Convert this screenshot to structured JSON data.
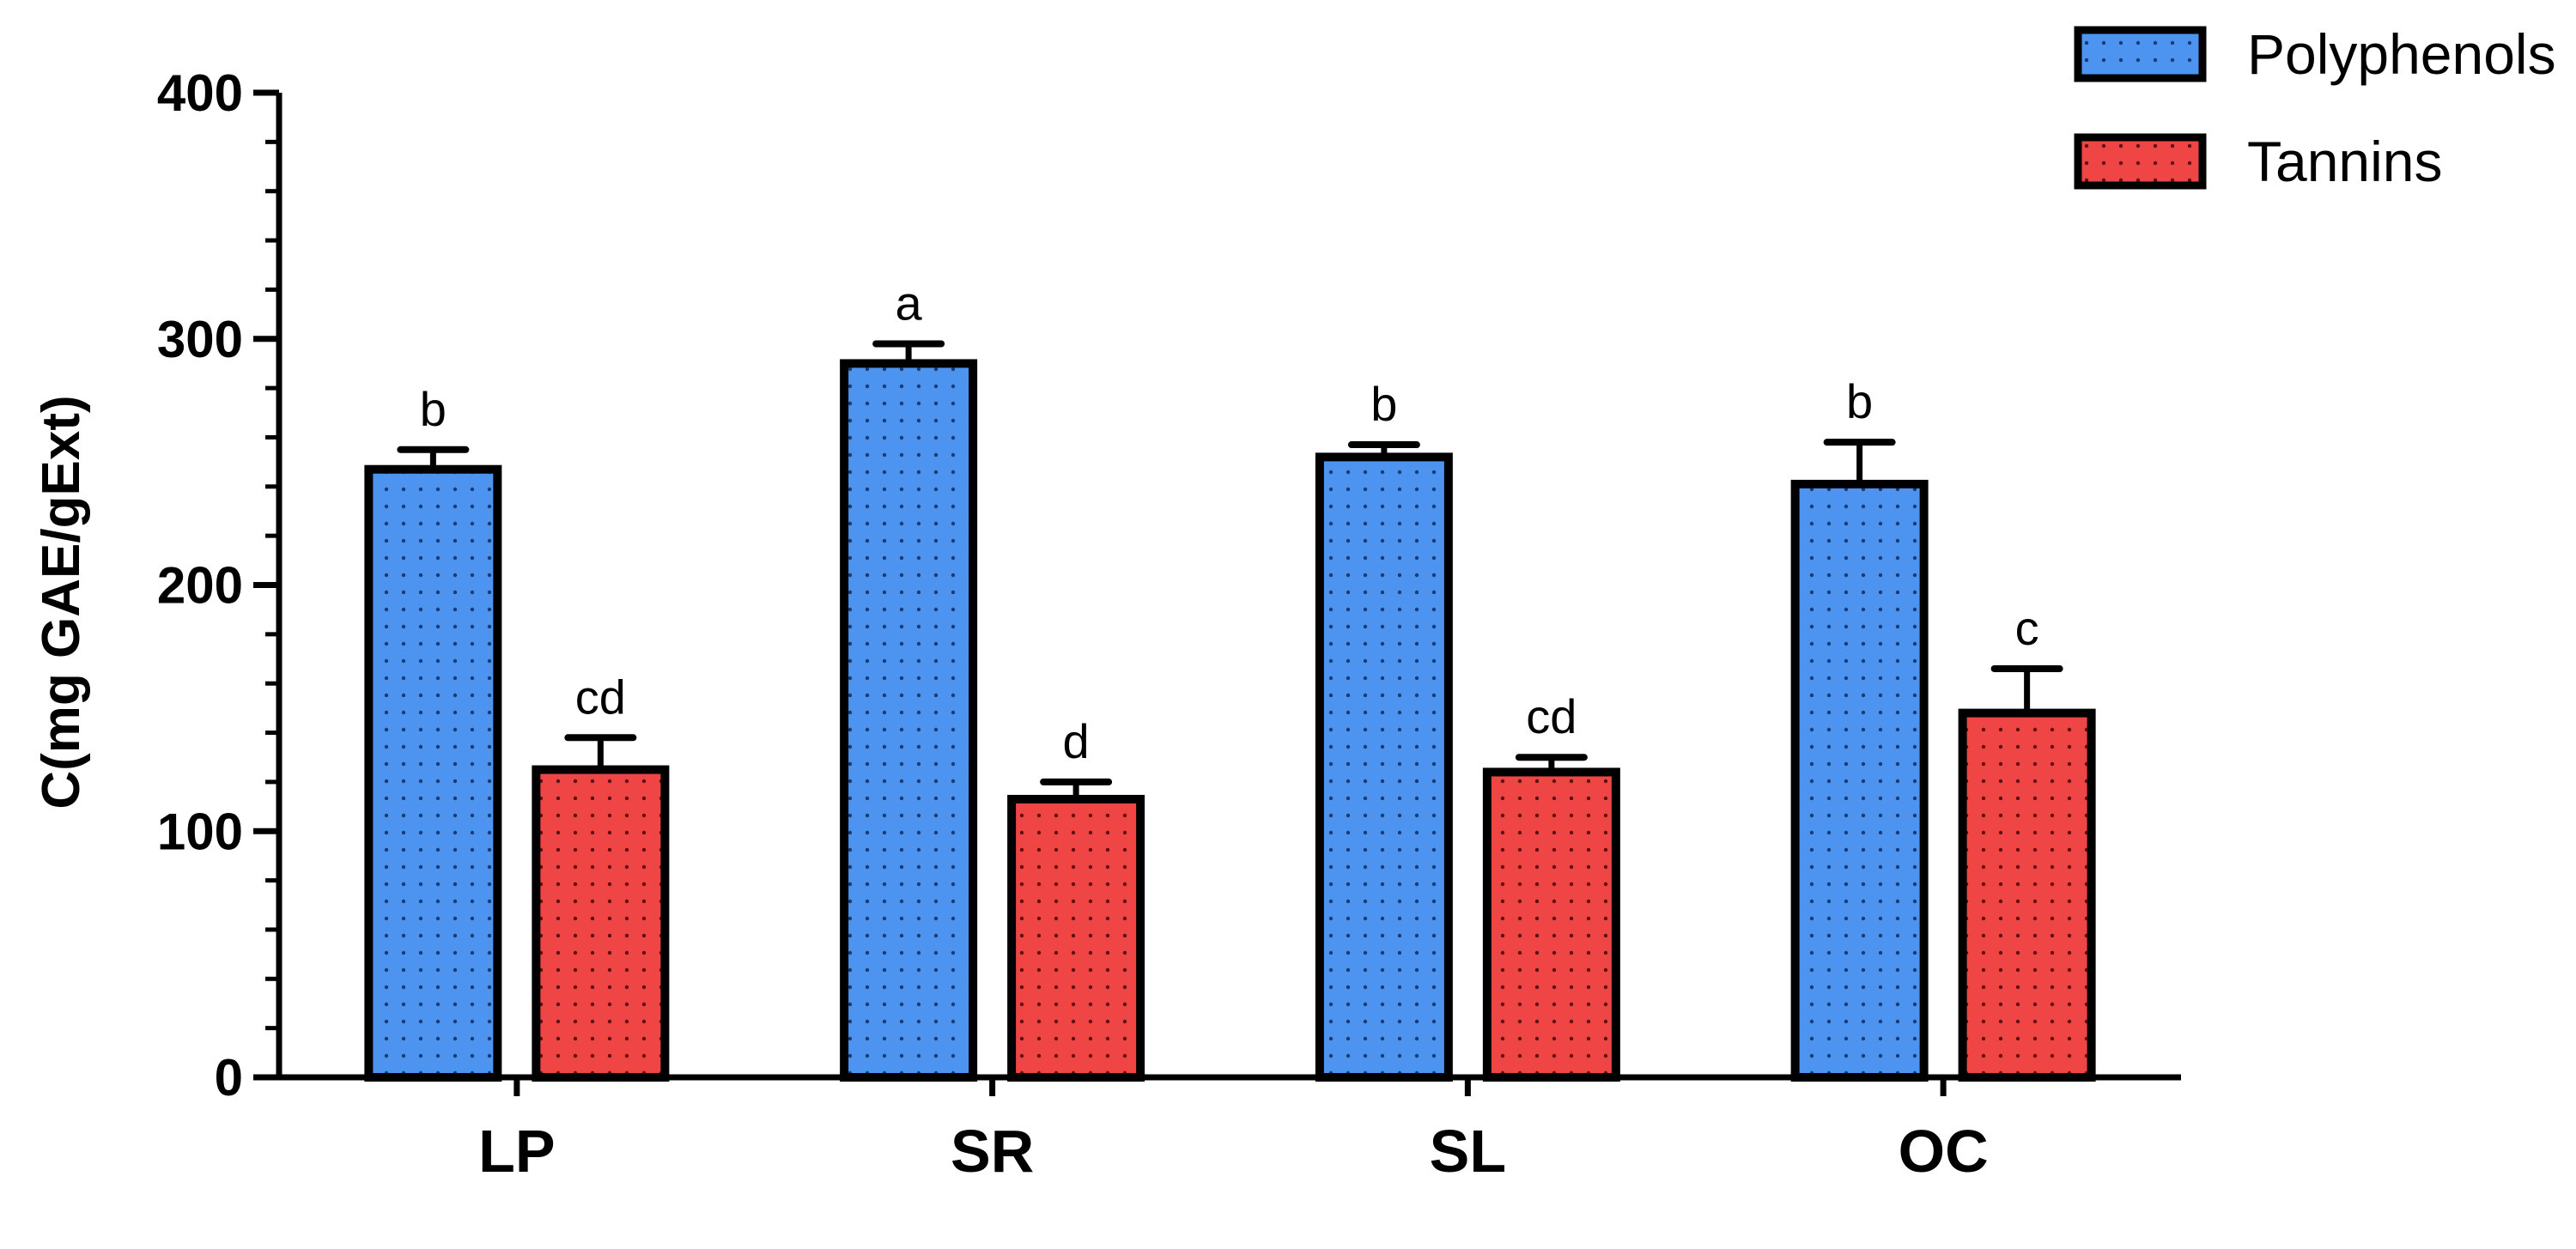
{
  "chart_data": {
    "type": "bar",
    "title": "",
    "xlabel": "",
    "ylabel": "C(mg GAE/gExt)",
    "ylim": [
      0,
      400
    ],
    "yticks": [
      0,
      100,
      200,
      300,
      400
    ],
    "grid": false,
    "legend_position": "top-right",
    "categories": [
      "LP",
      "SR",
      "SL",
      "OC"
    ],
    "series": [
      {
        "name": "Polyphenols",
        "color": "#4d94f0",
        "pattern": "dotted",
        "values": [
          247,
          290,
          252,
          241
        ],
        "errors": [
          8,
          8,
          5,
          17
        ],
        "significance": [
          "b",
          "a",
          "b",
          "b"
        ]
      },
      {
        "name": "Tannins",
        "color": "#f04545",
        "pattern": "dotted",
        "values": [
          125,
          113,
          124,
          148
        ],
        "errors": [
          13,
          7,
          6,
          18
        ],
        "significance": [
          "cd",
          "d",
          "cd",
          "c"
        ]
      }
    ]
  }
}
